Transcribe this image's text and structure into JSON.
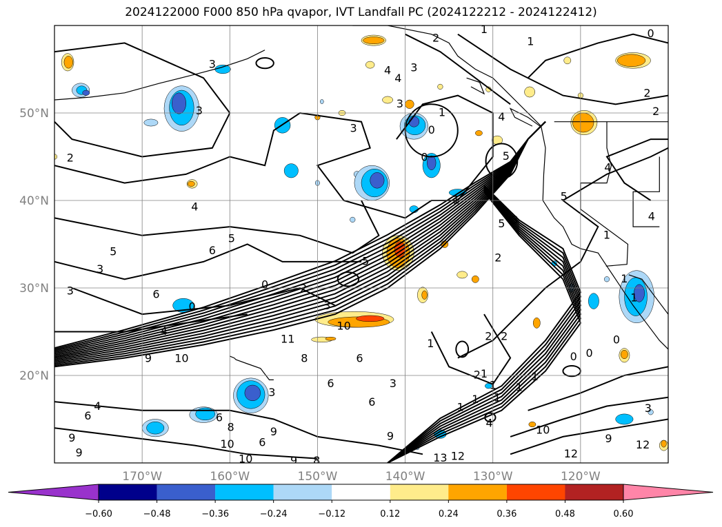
{
  "title": "2024122000 F000 850 hPa qvapor, IVT Landfall PC (2024122212 - 2024122412)",
  "chart_data": {
    "type": "heatmap",
    "title": "2024122000 F000 850 hPa qvapor, IVT Landfall PC (2024122212 - 2024122412)",
    "projection": "PlateCarree",
    "lon_range": [
      -180,
      -110
    ],
    "lat_range": [
      10,
      60
    ],
    "lat_ticks": [
      "20°N",
      "30°N",
      "40°N",
      "50°N"
    ],
    "lat_values": [
      20,
      30,
      40,
      50
    ],
    "lon_ticks": [
      "170°W",
      "160°W",
      "150°W",
      "140°W",
      "130°W",
      "120°W"
    ],
    "lon_values": [
      -170,
      -160,
      -150,
      -140,
      -130,
      -120
    ],
    "grid": true,
    "colorbar": {
      "orientation": "horizontal",
      "extend": "both",
      "levels": [
        -0.72,
        -0.6,
        -0.48,
        -0.36,
        -0.24,
        -0.12,
        0.12,
        0.24,
        0.36,
        0.48,
        0.6,
        0.72
      ],
      "tick_labels": [
        "−0.60",
        "−0.48",
        "−0.36",
        "−0.24",
        "−0.12",
        "0.12",
        "0.24",
        "0.36",
        "0.48",
        "0.60"
      ],
      "colors": [
        "#9932cc",
        "#00008b",
        "#3a5fcd",
        "#00bfff",
        "#add8f7",
        "#ffffff",
        "#ffec8b",
        "#ffa500",
        "#ff4500",
        "#b22222",
        "#ff85a8"
      ]
    },
    "contour_labels": [
      {
        "text": "3",
        "lon": -162.0,
        "lat": 55.5
      },
      {
        "text": "3",
        "lon": -163.5,
        "lat": 50.2
      },
      {
        "text": "2",
        "lon": -178.2,
        "lat": 44.8
      },
      {
        "text": "4",
        "lon": -164.0,
        "lat": 39.2
      },
      {
        "text": "5",
        "lon": -173.3,
        "lat": 34.1
      },
      {
        "text": "6",
        "lon": -162.0,
        "lat": 34.2
      },
      {
        "text": "5",
        "lon": -159.8,
        "lat": 35.6
      },
      {
        "text": "6",
        "lon": -168.4,
        "lat": 29.2
      },
      {
        "text": "0",
        "lon": -164.3,
        "lat": 27.8
      },
      {
        "text": "0",
        "lon": -156.0,
        "lat": 30.3
      },
      {
        "text": "2",
        "lon": -151.6,
        "lat": 29.9
      },
      {
        "text": "3",
        "lon": -148.9,
        "lat": 27.9
      },
      {
        "text": "10",
        "lon": -147.0,
        "lat": 25.6
      },
      {
        "text": "11",
        "lon": -153.4,
        "lat": 24.1
      },
      {
        "text": "10",
        "lon": -165.5,
        "lat": 21.9
      },
      {
        "text": "9",
        "lon": -169.3,
        "lat": 21.9
      },
      {
        "text": "3",
        "lon": -178.2,
        "lat": 29.6
      },
      {
        "text": "3",
        "lon": -174.8,
        "lat": 32.1
      },
      {
        "text": "4",
        "lon": -167.5,
        "lat": 25.0
      },
      {
        "text": "4",
        "lon": -175.1,
        "lat": 16.4
      },
      {
        "text": "6",
        "lon": -176.2,
        "lat": 15.3
      },
      {
        "text": "9",
        "lon": -178.0,
        "lat": 12.8
      },
      {
        "text": "9",
        "lon": -177.2,
        "lat": 11.1
      },
      {
        "text": "6",
        "lon": -161.2,
        "lat": 15.1
      },
      {
        "text": "8",
        "lon": -159.9,
        "lat": 14.0
      },
      {
        "text": "10",
        "lon": -160.3,
        "lat": 12.1
      },
      {
        "text": "6",
        "lon": -156.3,
        "lat": 12.3
      },
      {
        "text": "10",
        "lon": -158.2,
        "lat": 10.4
      },
      {
        "text": "9",
        "lon": -155.0,
        "lat": 13.5
      },
      {
        "text": "9",
        "lon": -152.7,
        "lat": 10.2
      },
      {
        "text": "8",
        "lon": -150.1,
        "lat": 10.2
      },
      {
        "text": "3",
        "lon": -155.2,
        "lat": 18.0
      },
      {
        "text": "8",
        "lon": -151.5,
        "lat": 21.9
      },
      {
        "text": "6",
        "lon": -148.5,
        "lat": 19.0
      },
      {
        "text": "6",
        "lon": -145.2,
        "lat": 21.9
      },
      {
        "text": "6",
        "lon": -143.8,
        "lat": 16.9
      },
      {
        "text": "3",
        "lon": -141.4,
        "lat": 19.0
      },
      {
        "text": "9",
        "lon": -141.7,
        "lat": 13.0
      },
      {
        "text": "5",
        "lon": -144.5,
        "lat": 33.0
      },
      {
        "text": "3",
        "lon": -140.6,
        "lat": 51.0
      },
      {
        "text": "3",
        "lon": -145.9,
        "lat": 48.2
      },
      {
        "text": "4",
        "lon": -142.0,
        "lat": 54.8
      },
      {
        "text": "3",
        "lon": -139.0,
        "lat": 55.1
      },
      {
        "text": "4",
        "lon": -140.8,
        "lat": 53.9
      },
      {
        "text": "0",
        "lon": -137.0,
        "lat": 48.0
      },
      {
        "text": "0",
        "lon": -137.8,
        "lat": 44.9
      },
      {
        "text": "1",
        "lon": -135.8,
        "lat": 50.0
      },
      {
        "text": "1",
        "lon": -134.2,
        "lat": 40.0
      },
      {
        "text": "2",
        "lon": -136.5,
        "lat": 58.5
      },
      {
        "text": "1",
        "lon": -131.0,
        "lat": 59.5
      },
      {
        "text": "1",
        "lon": -125.7,
        "lat": 58.1
      },
      {
        "text": "0",
        "lon": -112.0,
        "lat": 59.0
      },
      {
        "text": "2",
        "lon": -112.4,
        "lat": 52.2
      },
      {
        "text": "2",
        "lon": -111.4,
        "lat": 50.1
      },
      {
        "text": "4",
        "lon": -116.9,
        "lat": 43.7
      },
      {
        "text": "5",
        "lon": -121.9,
        "lat": 40.4
      },
      {
        "text": "4",
        "lon": -111.9,
        "lat": 38.1
      },
      {
        "text": "5",
        "lon": -128.5,
        "lat": 45.0
      },
      {
        "text": "4",
        "lon": -129.0,
        "lat": 49.5
      },
      {
        "text": "5",
        "lon": -129.0,
        "lat": 37.3
      },
      {
        "text": "3",
        "lon": -127.5,
        "lat": 37.7
      },
      {
        "text": "2",
        "lon": -129.4,
        "lat": 33.4
      },
      {
        "text": "1",
        "lon": -117.0,
        "lat": 36.0
      },
      {
        "text": "1",
        "lon": -115.0,
        "lat": 31.0
      },
      {
        "text": "1",
        "lon": -113.9,
        "lat": 28.8
      },
      {
        "text": "2",
        "lon": -128.7,
        "lat": 24.4
      },
      {
        "text": "2",
        "lon": -130.5,
        "lat": 24.4
      },
      {
        "text": "1",
        "lon": -137.1,
        "lat": 23.6
      },
      {
        "text": "1",
        "lon": -131.0,
        "lat": 20.1
      },
      {
        "text": "2",
        "lon": -131.8,
        "lat": 20.0
      },
      {
        "text": "1",
        "lon": -130.0,
        "lat": 18.8
      },
      {
        "text": "1",
        "lon": -129.5,
        "lat": 17.4
      },
      {
        "text": "1",
        "lon": -127.0,
        "lat": 18.6
      },
      {
        "text": "1",
        "lon": -125.2,
        "lat": 19.8
      },
      {
        "text": "1",
        "lon": -132.0,
        "lat": 17.2
      },
      {
        "text": "1",
        "lon": -133.7,
        "lat": 16.3
      },
      {
        "text": "0",
        "lon": -115.9,
        "lat": 24.0
      },
      {
        "text": "0",
        "lon": -120.8,
        "lat": 22.1
      },
      {
        "text": "0",
        "lon": -119.0,
        "lat": 22.5
      },
      {
        "text": "4",
        "lon": -130.4,
        "lat": 14.5
      },
      {
        "text": "10",
        "lon": -124.3,
        "lat": 13.7
      },
      {
        "text": "9",
        "lon": -116.8,
        "lat": 12.7
      },
      {
        "text": "12",
        "lon": -121.1,
        "lat": 11.0
      },
      {
        "text": "12",
        "lon": -112.9,
        "lat": 12.0
      },
      {
        "text": "13",
        "lon": -136.0,
        "lat": 10.5
      },
      {
        "text": "12",
        "lon": -134.0,
        "lat": 10.7
      },
      {
        "text": "3",
        "lon": -112.3,
        "lat": 16.2
      }
    ]
  }
}
